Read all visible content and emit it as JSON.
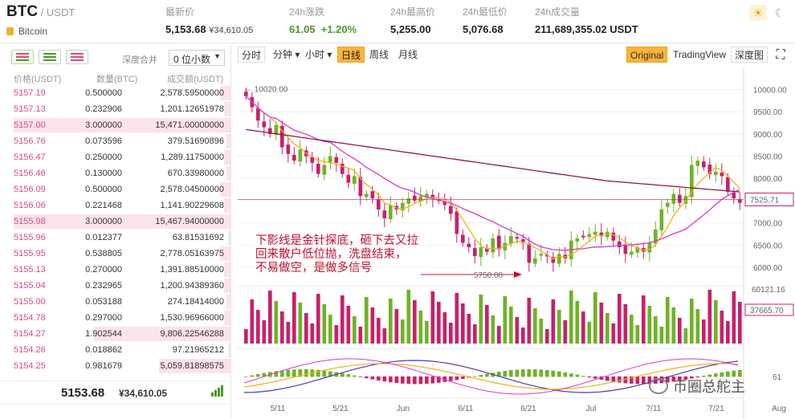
{
  "header": {
    "symbol": "BTC",
    "quote": " / USDT",
    "coin_name": "Bitcoin",
    "stats": [
      {
        "label": "最新价",
        "value": "5,153.68",
        "sub": "¥34,610.05"
      },
      {
        "label": "24h涨跌",
        "value": "61.05  +1.20%",
        "sub": ""
      },
      {
        "label": "24h最高价",
        "value": "5,255.00",
        "sub": ""
      },
      {
        "label": "24h最低价",
        "value": "5,076.68",
        "sub": ""
      },
      {
        "label": "24h成交量",
        "value": "211,689,355.02 USDT",
        "sub": ""
      }
    ],
    "theme_light_icon": "sun-icon",
    "theme_dark_icon": "moon-icon"
  },
  "orderbook": {
    "depth_label": "深度合并",
    "depth_value": "0 位小数",
    "columns": [
      "价格(USDT)",
      "数量(BTC)",
      "成交额(USDT)"
    ],
    "asks": [
      {
        "price": "5157.19",
        "qty": "0.500000",
        "total": "2,578.59500000",
        "depth": 0.05
      },
      {
        "price": "5157.13",
        "qty": "0.232906",
        "total": "1,201.12651978",
        "depth": 0.03
      },
      {
        "price": "5157.00",
        "qty": "3.000000",
        "total": "15,471.00000000",
        "depth": 1.0
      },
      {
        "price": "5156.76",
        "qty": "0.073596",
        "total": "379.51690896",
        "depth": 0.02
      },
      {
        "price": "5156.47",
        "qty": "0.250000",
        "total": "1,289.11750000",
        "depth": 0.03
      },
      {
        "price": "5156.46",
        "qty": "0.130000",
        "total": "670.33980000",
        "depth": 0.02
      },
      {
        "price": "5156.09",
        "qty": "0.500000",
        "total": "2,578.04500000",
        "depth": 0.05
      },
      {
        "price": "5156.06",
        "qty": "0.221468",
        "total": "1,141.90229608",
        "depth": 0.03
      },
      {
        "price": "5155.98",
        "qty": "3.000000",
        "total": "15,467.94000000",
        "depth": 1.0
      },
      {
        "price": "5155.96",
        "qty": "0.012377",
        "total": "63.81531692",
        "depth": 0.01
      },
      {
        "price": "5155.95",
        "qty": "0.538805",
        "total": "2,778.05163975",
        "depth": 0.05
      },
      {
        "price": "5155.13",
        "qty": "0.270000",
        "total": "1,391.88510000",
        "depth": 0.03
      },
      {
        "price": "5155.04",
        "qty": "0.232965",
        "total": "1,200.94389360",
        "depth": 0.03
      },
      {
        "price": "5155.00",
        "qty": "0.053188",
        "total": "274.18414000",
        "depth": 0.02
      },
      {
        "price": "5154.78",
        "qty": "0.297000",
        "total": "1,530.96966000",
        "depth": 0.03
      },
      {
        "price": "5154.27",
        "qty": "1.902544",
        "total": "9,806.22546288",
        "depth": 0.63
      },
      {
        "price": "5154.26",
        "qty": "0.018862",
        "total": "97.21965212",
        "depth": 0.01
      },
      {
        "price": "5154.25",
        "qty": "0.981679",
        "total": "5,059.81898575",
        "depth": 0.33
      }
    ],
    "last_price": "5153.68",
    "last_price_cny": "¥34,610.05"
  },
  "toolbar": {
    "buttons": [
      "分时",
      "分钟",
      "小时",
      "日线",
      "周线",
      "月线"
    ],
    "dropdown_marks": [
      "",
      "▾",
      "▾",
      "",
      "",
      ""
    ],
    "active": "日线",
    "views": [
      "Original",
      "TradingView",
      "深度图"
    ],
    "active_view": "Original"
  },
  "chart_labels": {
    "high_marker": "10020.00",
    "low_marker": "5750.00",
    "y_ticks": [
      "10000.00",
      "9500.00",
      "9000.00",
      "8500.00",
      "8000.00",
      "7500.00",
      "7000.00",
      "6500.00",
      "6000.00"
    ],
    "current_price_tag": "7525.71",
    "vol_max": "60121.16",
    "vol_tag": "37665.70",
    "macd_tag": "61",
    "x_ticks": [
      "5/11",
      "5/21",
      "Jun",
      "6/11",
      "6/21",
      "Jul",
      "7/11",
      "7/21",
      "Aug"
    ]
  },
  "annotation": {
    "line1": "下影线是金针探底，砸下去又拉",
    "line2": "回来散户低位抛，洗盘结束，",
    "line3": "不易做空，是做多信号"
  },
  "watermark": "币圈总舵主",
  "chart_data": {
    "type": "candlestick",
    "x_ticks": [
      "5/11",
      "5/21",
      "Jun",
      "6/11",
      "6/21",
      "Jul",
      "7/11",
      "7/21",
      "Aug"
    ],
    "ylim": [
      5600,
      10300
    ],
    "closes": [
      9850,
      9600,
      9300,
      9150,
      9000,
      9200,
      8700,
      8550,
      8400,
      8650,
      8500,
      8350,
      8100,
      8300,
      8500,
      8350,
      8100,
      7900,
      8050,
      7600,
      7650,
      7550,
      7300,
      7100,
      7400,
      7300,
      7450,
      7550,
      7500,
      7600,
      7650,
      7550,
      7500,
      7400,
      7200,
      6750,
      6550,
      6450,
      6250,
      6450,
      6350,
      6650,
      6400,
      6550,
      6700,
      6650,
      6550,
      6100,
      6200,
      6300,
      6250,
      6100,
      6300,
      6200,
      6600,
      6650,
      6700,
      6750,
      6800,
      6700,
      6800,
      6600,
      6450,
      6300,
      6350,
      6450,
      6350,
      6550,
      6850,
      7300,
      7450,
      7650,
      7450,
      7600,
      8300,
      8400,
      8250,
      8100,
      8150,
      8050,
      7700,
      7550,
      7450
    ],
    "volume_max": 60121.16,
    "volume_last": 37665.7,
    "current": 7525.71,
    "low_marker": 5750.0,
    "high_marker": 10020.0
  }
}
